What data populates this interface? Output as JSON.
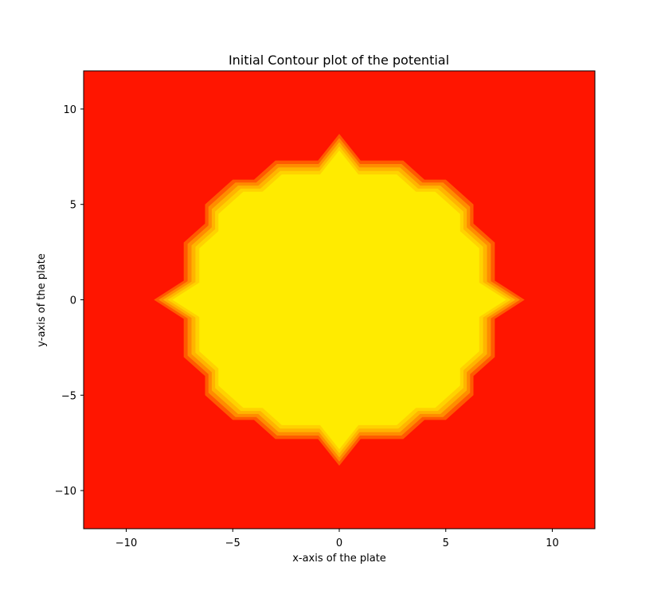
{
  "chart_data": {
    "type": "contour",
    "title": "Initial Contour plot of the potential",
    "xlabel": "x-axis of the plate",
    "ylabel": "y-axis of the plate",
    "xlim": [
      -12,
      12
    ],
    "ylim": [
      -12,
      12
    ],
    "xticks": [
      -10,
      -5,
      0,
      5,
      10
    ],
    "yticks": [
      -10,
      -5,
      0,
      5,
      10
    ],
    "xtick_labels": [
      "−10",
      "−5",
      "0",
      "5",
      "10"
    ],
    "ytick_labels": [
      "−10",
      "−5",
      "0",
      "5",
      "10"
    ],
    "grid": false,
    "colormap": "autumn",
    "colors": {
      "background_level": "#ff1500",
      "band_1": "#ff5a00",
      "band_2": "#ff8c00",
      "band_3": "#ffb400",
      "band_4": "#ffd200",
      "inner_level": "#ffeb00"
    },
    "inner_region_boundary": [
      [
        8.7,
        0
      ],
      [
        7.3,
        1.0
      ],
      [
        7.3,
        3.0
      ],
      [
        6.3,
        4.0
      ],
      [
        6.3,
        5.0
      ],
      [
        5.0,
        6.3
      ],
      [
        4.0,
        6.3
      ],
      [
        3.0,
        7.3
      ],
      [
        1.0,
        7.3
      ],
      [
        0,
        8.7
      ],
      [
        -1.0,
        7.3
      ],
      [
        -3.0,
        7.3
      ],
      [
        -4.0,
        6.3
      ],
      [
        -5.0,
        6.3
      ],
      [
        -6.3,
        5.0
      ],
      [
        -6.3,
        4.0
      ],
      [
        -7.3,
        3.0
      ],
      [
        -7.3,
        1.0
      ],
      [
        -8.7,
        0
      ],
      [
        -7.3,
        -1.0
      ],
      [
        -7.3,
        -3.0
      ],
      [
        -6.3,
        -4.0
      ],
      [
        -6.3,
        -5.0
      ],
      [
        -5.0,
        -6.3
      ],
      [
        -4.0,
        -6.3
      ],
      [
        -3.0,
        -7.3
      ],
      [
        -1.0,
        -7.3
      ],
      [
        0,
        -8.7
      ],
      [
        1.0,
        -7.3
      ],
      [
        3.0,
        -7.3
      ],
      [
        4.0,
        -6.3
      ],
      [
        5.0,
        -6.3
      ],
      [
        6.3,
        -5.0
      ],
      [
        6.3,
        -4.0
      ],
      [
        7.3,
        -3.0
      ],
      [
        7.3,
        -1.0
      ]
    ],
    "band_scales": [
      1.0,
      0.975,
      0.95,
      0.925,
      0.9
    ]
  }
}
